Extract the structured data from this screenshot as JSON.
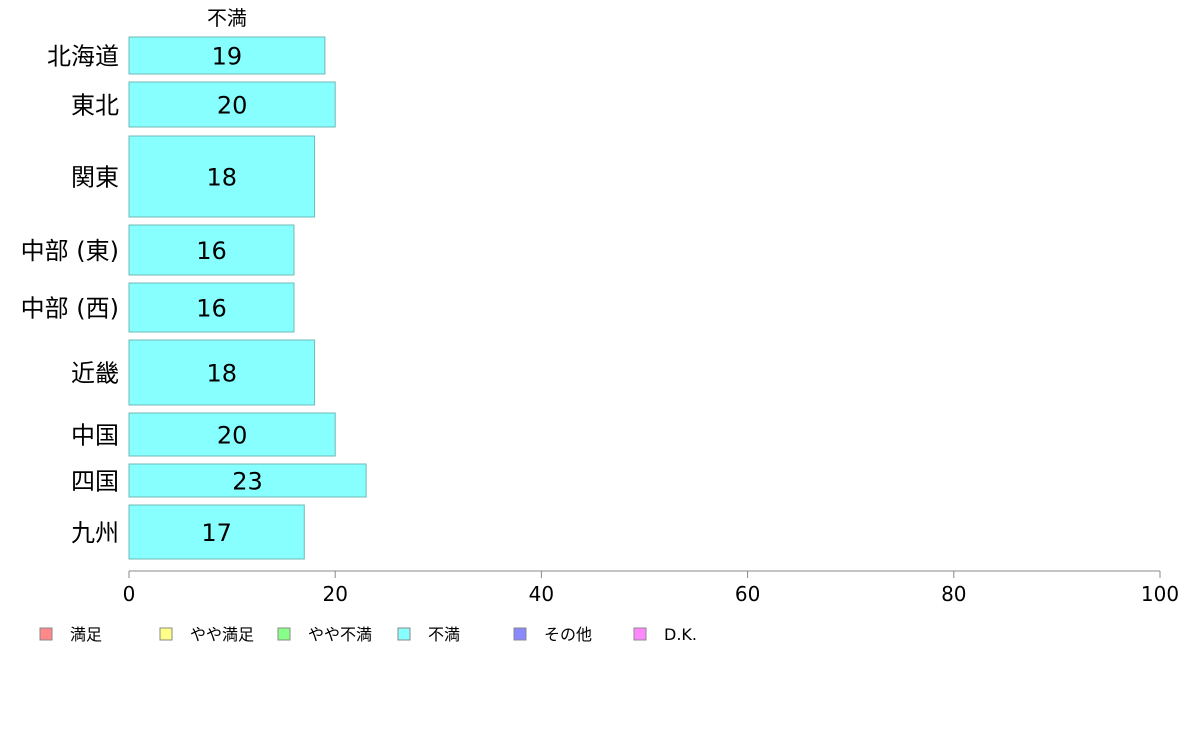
{
  "chart_data": {
    "type": "bar",
    "orientation": "horizontal",
    "stacked": true,
    "header_label": "不満",
    "categories": [
      "北海道",
      "東北",
      "関東",
      "中部 (東)",
      "中部 (西)",
      "近畿",
      "中国",
      "四国",
      "九州"
    ],
    "series": [
      {
        "name": "不満",
        "values": [
          19,
          20,
          18,
          16,
          16,
          18,
          20,
          23,
          17
        ],
        "color": "#88ffff"
      }
    ],
    "xlim": [
      0,
      100
    ],
    "xticks": [
      0,
      20,
      40,
      60,
      80,
      100
    ],
    "grid": false,
    "legend_position": "bottom",
    "legend": [
      {
        "name": "満足",
        "color": "#ff8888"
      },
      {
        "name": "やや満足",
        "color": "#ffff88"
      },
      {
        "name": "やや不満",
        "color": "#88ff88"
      },
      {
        "name": "不満",
        "color": "#88ffff"
      },
      {
        "name": "その他",
        "color": "#8888ff"
      },
      {
        "name": "D.K.",
        "color": "#ff88ff"
      }
    ]
  }
}
